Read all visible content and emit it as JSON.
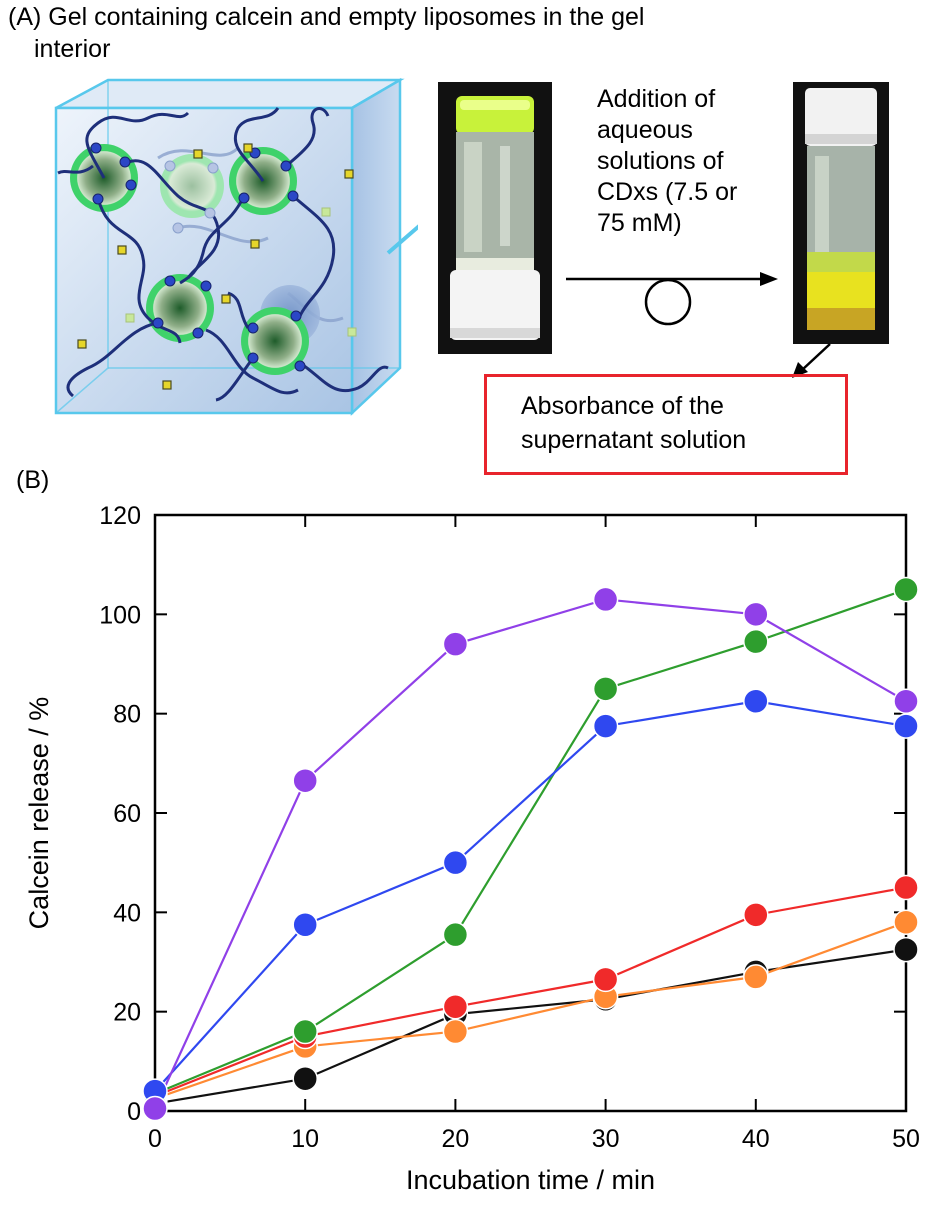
{
  "panel_a": {
    "title_line1": "(A) Gel containing calcein and empty liposomes in the gel",
    "title_line2": "interior",
    "step_label": [
      "Addition of",
      "aqueous",
      "solutions of",
      "CDxs (7.5 or",
      "75 mM)"
    ],
    "result_label": [
      "Absorbance of the",
      "supernatant solution"
    ],
    "colors": {
      "gel_edge": "#58c8ec",
      "liposome": "#3fd26a",
      "calcein": "#e6d62a",
      "polymer": "#1e2f7a",
      "red_box": "#e8242c"
    },
    "icons": [
      "gel-cube-illustration",
      "vial-photo-before",
      "vial-photo-after",
      "arrow-right",
      "arrow-diagonal",
      "loop-symbol"
    ]
  },
  "panel_b": {
    "label": "(B)"
  },
  "chart_data": {
    "type": "line",
    "title": "",
    "xlabel": "Incubation time / min",
    "ylabel": "Calcein release / %",
    "xlim": [
      0,
      50
    ],
    "ylim": [
      0,
      120
    ],
    "xticks": [
      0,
      10,
      20,
      30,
      40,
      50
    ],
    "yticks": [
      0,
      20,
      40,
      60,
      80,
      100,
      120
    ],
    "grid": false,
    "x": [
      0,
      10,
      20,
      30,
      40,
      50
    ],
    "series": [
      {
        "color": "#111111",
        "values": [
          1.5,
          6.5,
          19.5,
          22.5,
          28,
          32.5
        ]
      },
      {
        "color": "#ff8a33",
        "values": [
          2.5,
          13,
          16,
          23,
          27,
          38
        ]
      },
      {
        "color": "#f02a2a",
        "values": [
          3,
          15,
          21,
          26.5,
          39.5,
          45
        ]
      },
      {
        "color": "#2e9e2e",
        "values": [
          3.5,
          16,
          35.5,
          85,
          94.5,
          105
        ]
      },
      {
        "color": "#2f48f0",
        "values": [
          4,
          37.5,
          50,
          77.5,
          82.5,
          77.5
        ]
      },
      {
        "color": "#9040e8",
        "values": [
          0.5,
          66.5,
          94,
          103,
          100,
          82.5
        ]
      }
    ]
  }
}
